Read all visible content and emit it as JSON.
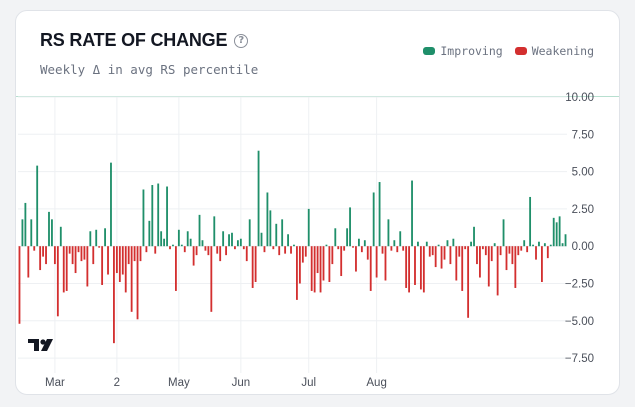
{
  "header": {
    "title": "RS RATE OF CHANGE",
    "subtitle": "Weekly Δ in avg RS percentile",
    "help_icon": "help-circle-icon"
  },
  "legend": [
    {
      "label": "Improving",
      "color": "#1f8f6a"
    },
    {
      "label": "Weakening",
      "color": "#d32f2f"
    }
  ],
  "watermark_icon": "tradingview-logo-icon",
  "chart_data": {
    "type": "bar",
    "title": "RS RATE OF CHANGE",
    "subtitle": "Weekly Δ in avg RS percentile",
    "xlabel": "",
    "ylabel": "",
    "ylim": [
      -8.5,
      10
    ],
    "y_ticks": [
      10,
      7.5,
      5,
      2.5,
      0,
      -2.5,
      -5,
      -7.5
    ],
    "y_tick_labels": [
      "10.00",
      "7.50",
      "5.00",
      "2.50",
      "0.00",
      "−2.50",
      "−5.00",
      "−7.50"
    ],
    "x_tick_labels": [
      {
        "label": "Mar",
        "index": 12
      },
      {
        "label": "2",
        "index": 33
      },
      {
        "label": "May",
        "index": 54
      },
      {
        "label": "Jun",
        "index": 75
      },
      {
        "label": "Jul",
        "index": 98
      },
      {
        "label": "Aug",
        "index": 121
      }
    ],
    "grid": true,
    "legend_position": "top-right",
    "positive_color": "#1f8f6a",
    "negative_color": "#d32f2f",
    "series": [
      {
        "values": [
          -5.2,
          1.8,
          2.9,
          -2.1,
          1.8,
          -0.3,
          5.4,
          -1.6,
          -0.7,
          -1.2,
          2.3,
          1.8,
          -1.2,
          -4.7,
          1.3,
          -3.1,
          -3.0,
          -0.5,
          -1.2,
          -1.8,
          -0.4,
          -1.0,
          -0.9,
          -2.7,
          1.0,
          -1.2,
          1.1,
          -0.1,
          -2.6,
          1.2,
          -1.9,
          5.6,
          -6.5,
          -1.8,
          -2.4,
          -1.9,
          -3.1,
          -1.2,
          -4.4,
          -1.0,
          -4.9,
          -1.0,
          3.8,
          -0.4,
          1.7,
          4.1,
          -0.5,
          4.2,
          1.0,
          0.5,
          4.0,
          -0.2,
          0.1,
          -3.0,
          1.1,
          0.1,
          -0.4,
          1.0,
          0.5,
          -1.3,
          -0.6,
          2.1,
          0.4,
          -0.3,
          -0.6,
          -4.4,
          2.0,
          -0.5,
          -1.0,
          1.0,
          -0.6,
          0.8,
          0.9,
          -0.2,
          0.4,
          0.5,
          -0.2,
          -1.0,
          1.8,
          -2.8,
          -2.4,
          6.4,
          0.9,
          -0.4,
          3.6,
          2.4,
          -0.2,
          1.5,
          -0.6,
          1.8,
          -0.5,
          0.8,
          -0.5,
          0.1,
          -3.6,
          -2.5,
          -1.1,
          -0.7,
          2.5,
          -3.0,
          -3.1,
          -1.8,
          -3.1,
          -2.3,
          0.1,
          -2.4,
          -1.2,
          1.2,
          -0.2,
          -2.0,
          -0.3,
          1.2,
          2.6,
          -0.1,
          -1.7,
          0.5,
          -0.4,
          0.4,
          -0.9,
          -3.0,
          3.6,
          -2.1,
          4.3,
          -0.5,
          -2.3,
          1.8,
          -0.3,
          0.4,
          -0.4,
          1.0,
          -0.3,
          -2.8,
          -3.1,
          4.4,
          -2.6,
          0.3,
          -2.9,
          -3.1,
          0.3,
          -0.7,
          -0.6,
          -1.4,
          0.1,
          -1.5,
          -0.9,
          0.4,
          -1.2,
          0.5,
          -2.3,
          -0.7,
          -3.0,
          -0.2,
          -4.8,
          0.3,
          1.3,
          -1.2,
          -2.1,
          -0.2,
          -0.6,
          -2.7,
          -1.0,
          0.2,
          -3.3,
          -0.6,
          1.8,
          -1.6,
          -0.5,
          -1.2,
          -2.8,
          -0.6,
          -0.3,
          0.4,
          -0.4,
          3.3,
          0.1,
          -0.9,
          0.3,
          -2.4,
          0.2,
          -0.8,
          0.1,
          1.9,
          1.6,
          2.0,
          0.2,
          0.8
        ]
      }
    ]
  }
}
